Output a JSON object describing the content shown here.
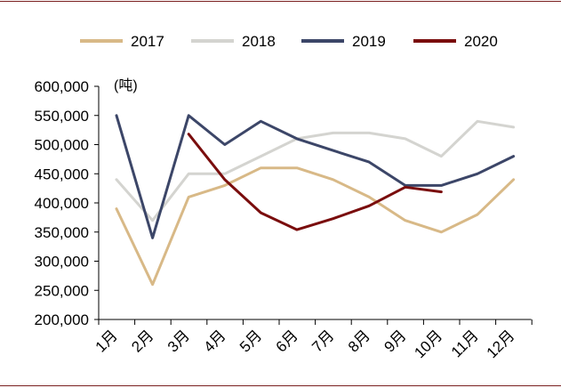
{
  "chart_data": {
    "type": "line",
    "title": "",
    "unit_label": "(吨)",
    "categories": [
      "1月",
      "2月",
      "3月",
      "4月",
      "5月",
      "6月",
      "7月",
      "8月",
      "9月",
      "10月",
      "11月",
      "12月"
    ],
    "ylim": [
      200000,
      600000
    ],
    "y_ticks": [
      200000,
      250000,
      300000,
      350000,
      400000,
      450000,
      500000,
      550000,
      600000
    ],
    "y_tick_labels": [
      "200,000",
      "250,000",
      "300,000",
      "350,000",
      "400,000",
      "450,000",
      "500,000",
      "550,000",
      "600,000"
    ],
    "legend_position": "top",
    "series": [
      {
        "name": "2017",
        "color": "#d8b987",
        "values": [
          390000,
          260000,
          410000,
          430000,
          460000,
          460000,
          440000,
          410000,
          370000,
          350000,
          380000,
          440000
        ]
      },
      {
        "name": "2018",
        "color": "#d4d4d0",
        "values": [
          440000,
          370000,
          450000,
          450000,
          480000,
          510000,
          520000,
          520000,
          510000,
          480000,
          540000,
          530000
        ]
      },
      {
        "name": "2019",
        "color": "#3c4668",
        "values": [
          550000,
          340000,
          550000,
          500000,
          540000,
          510000,
          490000,
          470000,
          430000,
          430000,
          450000,
          480000
        ]
      },
      {
        "name": "2020",
        "color": "#7a0d0d",
        "values": [
          null,
          null,
          518000,
          440000,
          383000,
          354000,
          373000,
          395000,
          427000,
          419000,
          null,
          null
        ]
      }
    ]
  }
}
